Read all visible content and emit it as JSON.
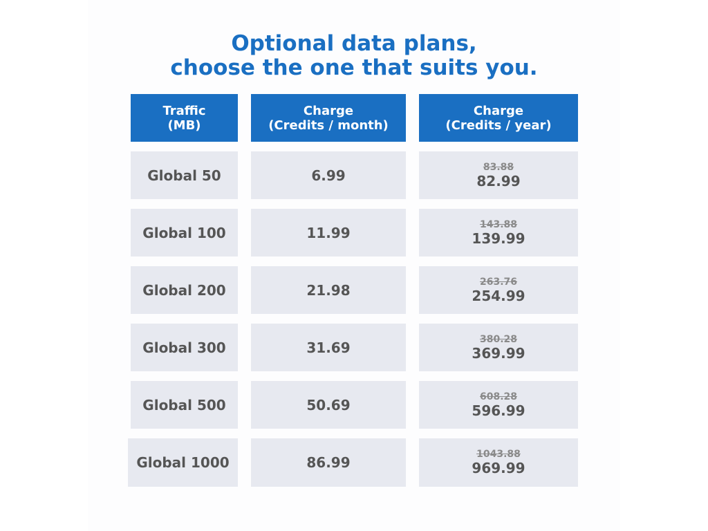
{
  "title": {
    "line1": "Optional data plans,",
    "line2": "choose the one that suits you."
  },
  "header": {
    "traffic": {
      "line1": "Traffic",
      "line2": "(MB)"
    },
    "monthly": {
      "line1": "Charge",
      "line2": "(Credits / month)"
    },
    "yearly": {
      "line1": "Charge",
      "line2": "(Credits / year)"
    }
  },
  "plans": [
    {
      "name": "Global 50",
      "monthly": "6.99",
      "yearly_old": "83.88",
      "yearly_new": "82.99"
    },
    {
      "name": "Global 100",
      "monthly": "11.99",
      "yearly_old": "143.88",
      "yearly_new": "139.99"
    },
    {
      "name": "Global 200",
      "monthly": "21.98",
      "yearly_old": "263.76",
      "yearly_new": "254.99"
    },
    {
      "name": "Global 300",
      "monthly": "31.69",
      "yearly_old": "380.28",
      "yearly_new": "369.99"
    },
    {
      "name": "Global 500",
      "monthly": "50.69",
      "yearly_old": "608.28",
      "yearly_new": "596.99"
    },
    {
      "name": "Global 1000",
      "monthly": "86.99",
      "yearly_old": "1043.88",
      "yearly_new": "969.99"
    }
  ],
  "colors": {
    "accent": "#1a6fc2",
    "cell_background": "#e7e9f0",
    "text": "#555555",
    "old_price": "#8a8a8a"
  }
}
